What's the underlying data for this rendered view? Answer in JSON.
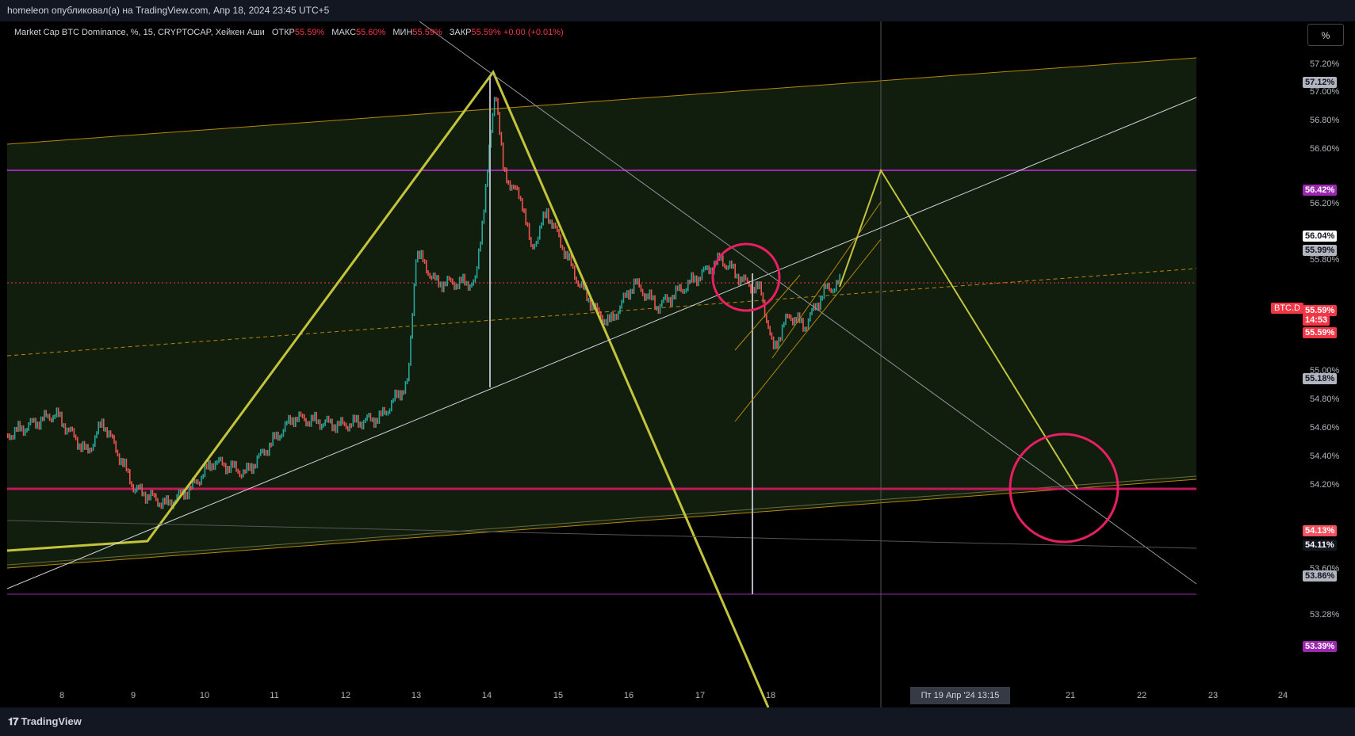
{
  "header": {
    "title": "homeleon опубликовал(а) на TradingView.com, Апр 18, 2024 23:45 UTC+5"
  },
  "legend": {
    "symbol": "Market Cap BTC Dominance, %, 15, CRYPTOCAP, Хейкен Аши",
    "open_label": "ОТКР",
    "open_value": "55.59%",
    "high_label": "МАКС",
    "high_value": "55.60%",
    "low_label": "МИН",
    "low_value": "55.59%",
    "close_label": "ЗАКР",
    "close_value": "55.59%",
    "change": "+0.00 (+0.01%)"
  },
  "toolbar": {
    "percent_button": "%"
  },
  "x_axis": {
    "labels": [
      "8",
      "9",
      "10",
      "11",
      "12",
      "13",
      "14",
      "15",
      "16",
      "17",
      "18",
      "21",
      "22",
      "23",
      "24"
    ],
    "crosshair_label": "19 Апр '24   13:15",
    "partial_label": "Пт"
  },
  "y_axis": {
    "labels": [
      "57.20%",
      "57.00%",
      "56.80%",
      "56.60%",
      "56.20%",
      "55.80%",
      "55.00%",
      "54.80%",
      "54.60%",
      "54.40%",
      "54.20%",
      "53.60%",
      "53.28%"
    ],
    "badges": [
      {
        "text": "57.12%",
        "bg": "#b2b5be",
        "fg": "#131722"
      },
      {
        "text": "56.42%",
        "bg": "#9c27b0",
        "fg": "#ffffff"
      },
      {
        "text": "56.04%",
        "bg": "#ffffff",
        "fg": "#131722"
      },
      {
        "text": "55.99%",
        "bg": "#b2b5be",
        "fg": "#131722"
      },
      {
        "text": "55.59%",
        "bg": "#f23645",
        "fg": "#ffffff"
      },
      {
        "text": "14:53",
        "bg": "#f23645",
        "fg": "#ffffff"
      },
      {
        "text": "55.59%",
        "bg": "#f23645",
        "fg": "#ffffff"
      },
      {
        "text": "55.18%",
        "bg": "#b2b5be",
        "fg": "#131722"
      },
      {
        "text": "54.13%",
        "bg": "#f7525f",
        "fg": "#ffffff"
      },
      {
        "text": "54.11%",
        "bg": "#131722",
        "fg": "#ffffff"
      },
      {
        "text": "53.86%",
        "bg": "#b2b5be",
        "fg": "#131722"
      },
      {
        "text": "53.39%",
        "bg": "#9c27b0",
        "fg": "#ffffff"
      }
    ],
    "symbol_tag": "BTC.D"
  },
  "branding": {
    "logo_text": "TradingView"
  },
  "colors": {
    "up": "#26a69a",
    "down": "#ef5350",
    "pattern": "#c4c43a",
    "channel": "#b8860b",
    "resistance": "#9c27b0",
    "support": "#c2185b",
    "circle": "#e91e63"
  }
}
